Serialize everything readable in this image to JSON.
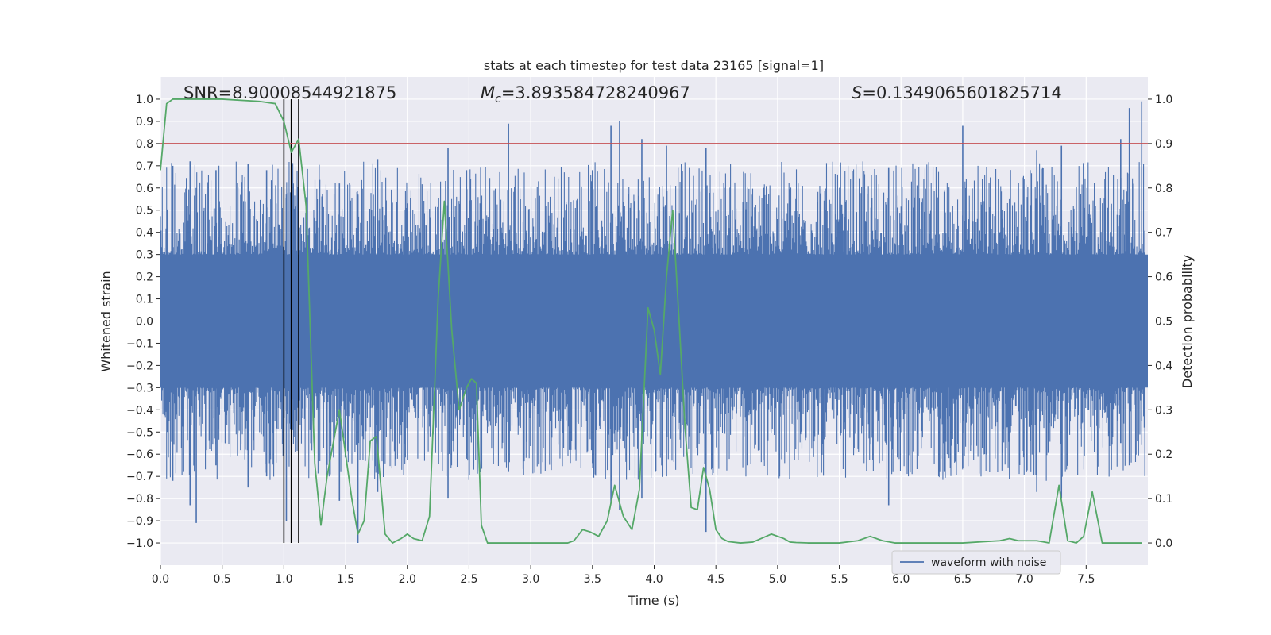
{
  "chart_data": {
    "type": "line",
    "title": "stats at each timestep for test data 23165 [signal=1]",
    "xlabel": "Time (s)",
    "ylabel": "Whitened strain",
    "y2label": "Detection probability",
    "xlim": [
      0.0,
      8.0
    ],
    "ylim": [
      -1.1,
      1.1
    ],
    "y2lim": [
      -0.05,
      1.05
    ],
    "xticks": [
      "0.0",
      "0.5",
      "1.0",
      "1.5",
      "2.0",
      "2.5",
      "3.0",
      "3.5",
      "4.0",
      "4.5",
      "5.0",
      "5.5",
      "6.0",
      "6.5",
      "7.0",
      "7.5"
    ],
    "yticks": [
      "1.0",
      "0.9",
      "0.8",
      "0.7",
      "0.6",
      "0.5",
      "0.4",
      "0.3",
      "0.2",
      "0.1",
      "0.0",
      "−0.1",
      "−0.2",
      "−0.3",
      "−0.4",
      "−0.5",
      "−0.6",
      "−0.7",
      "−0.8",
      "−0.9",
      "−1.0"
    ],
    "y2ticks": [
      "1.0",
      "0.9",
      "0.8",
      "0.7",
      "0.6",
      "0.5",
      "0.4",
      "0.3",
      "0.2",
      "0.1",
      "0.0"
    ],
    "grid": true,
    "legend_position": "lower-right",
    "annotations": {
      "snr": "SNR=8.90008544921875",
      "mc_symbol": "M",
      "mc_sub": "c",
      "mc_value": "=3.893584728240967",
      "s_symbol": "S",
      "s_value": "=0.1349065601825714"
    },
    "threshold": {
      "value": 0.9,
      "axis": "right",
      "color": "#c44e52"
    },
    "vlines": [
      1.0,
      1.06,
      1.12
    ],
    "waveform": {
      "name": "waveform with noise",
      "color": "#4c72b0",
      "core_amplitude": 0.3,
      "peaks": [
        {
          "t": 0.1,
          "hi": 0.7,
          "lo": -0.72
        },
        {
          "t": 0.24,
          "hi": 0.72,
          "lo": -0.83
        },
        {
          "t": 0.29,
          "hi": 0.6,
          "lo": -0.91
        },
        {
          "t": 0.45,
          "hi": 0.68,
          "lo": -0.65
        },
        {
          "t": 0.71,
          "hi": 0.71,
          "lo": -0.75
        },
        {
          "t": 0.86,
          "hi": 0.68,
          "lo": -0.7
        },
        {
          "t": 1.02,
          "hi": 0.57,
          "lo": -0.9
        },
        {
          "t": 1.45,
          "hi": 0.62,
          "lo": -0.81
        },
        {
          "t": 1.6,
          "hi": 0.57,
          "lo": -1.0
        },
        {
          "t": 1.76,
          "hi": 0.73,
          "lo": -0.77
        },
        {
          "t": 2.33,
          "hi": 0.78,
          "lo": -0.8
        },
        {
          "t": 2.48,
          "hi": 0.68,
          "lo": -0.62
        },
        {
          "t": 2.82,
          "hi": 0.89,
          "lo": -0.68
        },
        {
          "t": 3.5,
          "hi": 0.68,
          "lo": -0.64
        },
        {
          "t": 3.65,
          "hi": 0.88,
          "lo": -0.82
        },
        {
          "t": 3.72,
          "hi": 0.9,
          "lo": -0.85
        },
        {
          "t": 3.9,
          "hi": 0.82,
          "lo": -0.8
        },
        {
          "t": 4.1,
          "hi": 0.79,
          "lo": -0.7
        },
        {
          "t": 4.42,
          "hi": 0.78,
          "lo": -0.95
        },
        {
          "t": 5.9,
          "hi": 0.69,
          "lo": -0.83
        },
        {
          "t": 6.5,
          "hi": 0.88,
          "lo": -0.66
        },
        {
          "t": 7.1,
          "hi": 0.77,
          "lo": -0.77
        },
        {
          "t": 7.3,
          "hi": 0.79,
          "lo": -0.8
        },
        {
          "t": 7.78,
          "hi": 0.82,
          "lo": -0.55
        },
        {
          "t": 7.85,
          "hi": 0.96,
          "lo": -0.65
        },
        {
          "t": 7.95,
          "hi": 0.99,
          "lo": -0.45
        }
      ]
    },
    "probability": {
      "color": "#55a868",
      "x": [
        0.0,
        0.05,
        0.1,
        0.2,
        0.5,
        0.8,
        0.93,
        1.0,
        1.06,
        1.12,
        1.18,
        1.25,
        1.3,
        1.35,
        1.45,
        1.55,
        1.6,
        1.65,
        1.7,
        1.75,
        1.82,
        1.88,
        1.95,
        2.0,
        2.05,
        2.12,
        2.18,
        2.25,
        2.3,
        2.36,
        2.42,
        2.48,
        2.52,
        2.56,
        2.6,
        2.65,
        2.7,
        3.0,
        3.3,
        3.35,
        3.42,
        3.48,
        3.55,
        3.62,
        3.68,
        3.75,
        3.82,
        3.88,
        3.95,
        4.0,
        4.05,
        4.1,
        4.15,
        4.2,
        4.25,
        4.3,
        4.35,
        4.4,
        4.45,
        4.5,
        4.55,
        4.6,
        4.7,
        4.8,
        4.95,
        5.05,
        5.1,
        5.15,
        5.25,
        5.35,
        5.5,
        5.65,
        5.75,
        5.85,
        5.95,
        6.0,
        6.5,
        6.8,
        6.88,
        6.95,
        7.1,
        7.2,
        7.28,
        7.35,
        7.42,
        7.48,
        7.55,
        7.63,
        7.7,
        7.78,
        7.95
      ],
      "values": [
        0.84,
        0.99,
        1.0,
        1.0,
        1.0,
        0.995,
        0.99,
        0.95,
        0.88,
        0.91,
        0.76,
        0.18,
        0.04,
        0.15,
        0.3,
        0.1,
        0.02,
        0.05,
        0.23,
        0.24,
        0.02,
        0.0,
        0.01,
        0.02,
        0.01,
        0.005,
        0.06,
        0.55,
        0.77,
        0.48,
        0.3,
        0.35,
        0.37,
        0.36,
        0.04,
        0.0,
        0.0,
        0.0,
        0.0,
        0.005,
        0.03,
        0.025,
        0.015,
        0.05,
        0.13,
        0.06,
        0.03,
        0.12,
        0.53,
        0.48,
        0.38,
        0.6,
        0.75,
        0.51,
        0.26,
        0.08,
        0.075,
        0.17,
        0.12,
        0.03,
        0.01,
        0.003,
        0.0,
        0.002,
        0.02,
        0.01,
        0.002,
        0.001,
        0.0,
        0.0,
        0.0,
        0.005,
        0.015,
        0.005,
        0.0,
        0.0,
        0.0,
        0.005,
        0.01,
        0.005,
        0.005,
        0.0,
        0.13,
        0.005,
        0.0,
        0.015,
        0.115,
        0.0,
        0.0,
        0.0,
        0.0
      ]
    }
  }
}
